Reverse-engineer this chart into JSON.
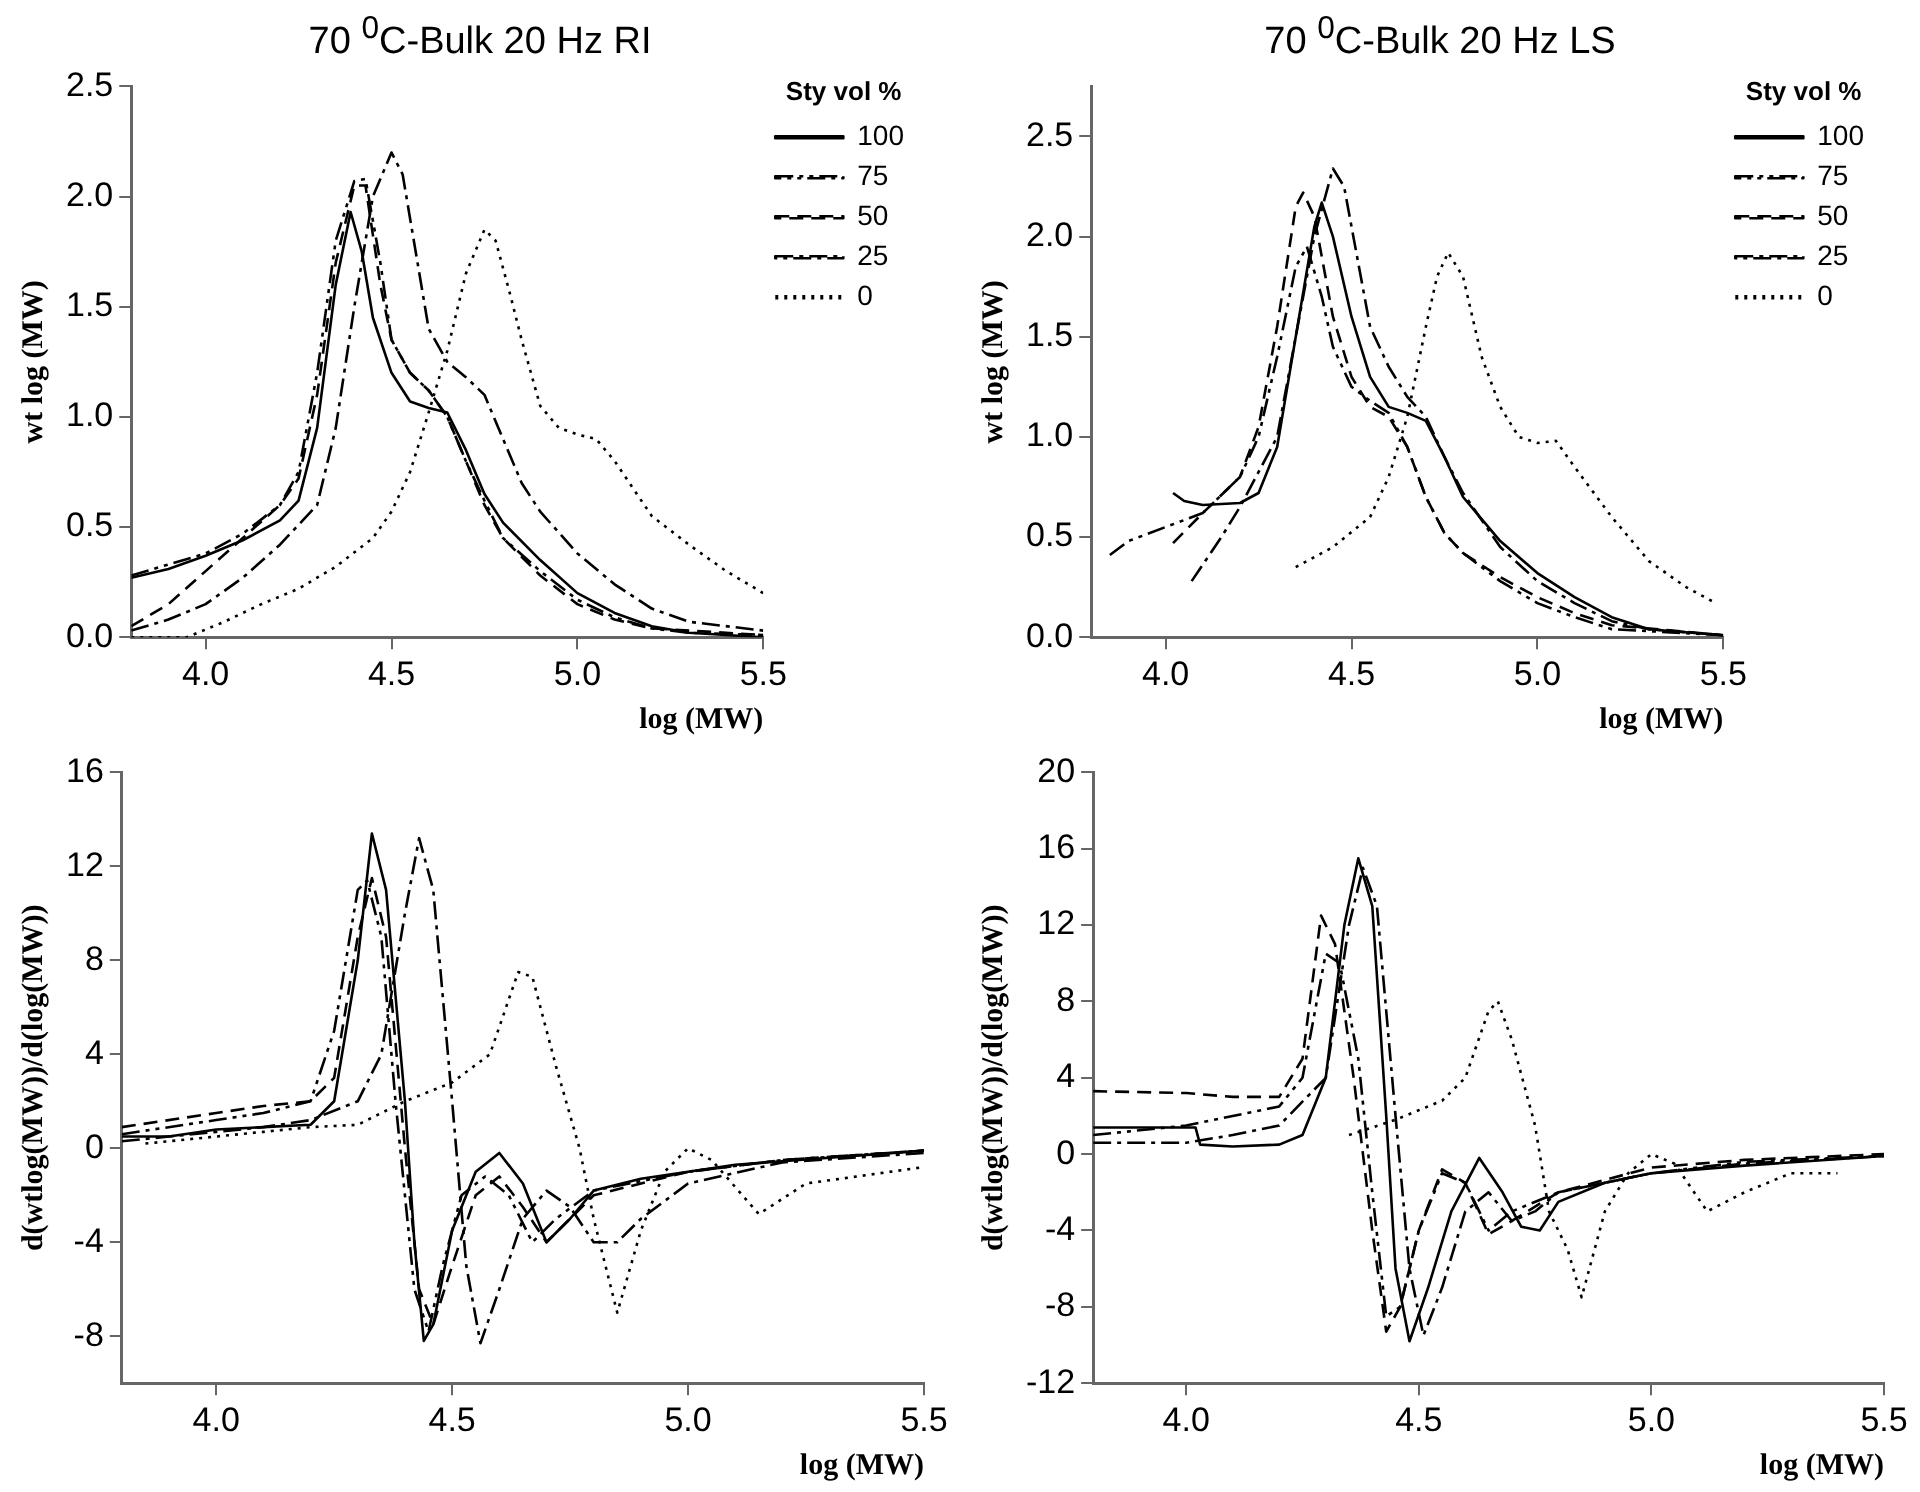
{
  "chart_data": [
    {
      "type": "line",
      "title": "70 $^{0}$C-Bulk 20 Hz RI",
      "xlabel": "log (MW)",
      "ylabel": "wt log (MW)",
      "xlim": [
        3.8,
        5.5
      ],
      "xticks": [
        {
          "value": 4,
          "label": "4.0"
        },
        {
          "value": 4.5,
          "label": "4.5"
        },
        {
          "value": 5,
          "label": "5.0"
        },
        {
          "value": 5.5,
          "label": "5.5"
        }
      ],
      "ylim": [
        0,
        2.5
      ],
      "yticks": [
        {
          "value": 0,
          "label": "0.0"
        },
        {
          "value": 0.5,
          "label": "0.5"
        },
        {
          "value": 1,
          "label": "1.0"
        },
        {
          "value": 1.5,
          "label": "1.5"
        },
        {
          "value": 2,
          "label": "2.0"
        },
        {
          "value": 2.5,
          "label": "2.5"
        }
      ],
      "legend": "top right",
      "legend_title": "Sty vol %",
      "grid": false,
      "series": [
        {
          "name": "100",
          "color": "#000000",
          "line_style": "solid",
          "x": [
            3.8,
            3.9,
            4.0,
            4.1,
            4.2,
            4.25,
            4.3,
            4.35,
            4.39,
            4.42,
            4.45,
            4.5,
            4.55,
            4.6,
            4.65,
            4.7,
            4.75,
            4.8,
            4.9,
            5.0,
            5.1,
            5.2,
            5.3,
            5.5
          ],
          "values": [
            0.27,
            0.31,
            0.37,
            0.44,
            0.53,
            0.62,
            0.95,
            1.6,
            1.93,
            1.75,
            1.45,
            1.2,
            1.07,
            1.04,
            1.02,
            0.85,
            0.65,
            0.52,
            0.35,
            0.2,
            0.11,
            0.05,
            0.02,
            0.0
          ]
        },
        {
          "name": "75",
          "color": "#000000",
          "line_style": "dashdotdot",
          "x": [
            3.8,
            3.9,
            4.0,
            4.1,
            4.2,
            4.25,
            4.3,
            4.35,
            4.4,
            4.43,
            4.47,
            4.5,
            4.55,
            4.6,
            4.65,
            4.7,
            4.75,
            4.8,
            4.9,
            5.0,
            5.1,
            5.2,
            5.3,
            5.5
          ],
          "values": [
            0.28,
            0.33,
            0.38,
            0.47,
            0.6,
            0.75,
            1.2,
            1.8,
            2.07,
            2.08,
            1.7,
            1.35,
            1.2,
            1.12,
            1.0,
            0.8,
            0.62,
            0.45,
            0.3,
            0.17,
            0.09,
            0.04,
            0.02,
            0.01
          ]
        },
        {
          "name": "50",
          "color": "#000000",
          "line_style": "dashed",
          "x": [
            3.8,
            3.9,
            4.0,
            4.1,
            4.2,
            4.25,
            4.3,
            4.35,
            4.4,
            4.43,
            4.47,
            4.5,
            4.55,
            4.6,
            4.65,
            4.7,
            4.75,
            4.8,
            4.9,
            5.0,
            5.1,
            5.2,
            5.5
          ],
          "values": [
            0.05,
            0.15,
            0.3,
            0.45,
            0.6,
            0.72,
            1.1,
            1.7,
            2.05,
            2.05,
            1.6,
            1.35,
            1.2,
            1.12,
            1.0,
            0.8,
            0.6,
            0.45,
            0.28,
            0.15,
            0.08,
            0.04,
            0.01
          ]
        },
        {
          "name": "25",
          "color": "#000000",
          "line_style": "dashdot",
          "x": [
            3.8,
            3.9,
            4.0,
            4.1,
            4.2,
            4.3,
            4.35,
            4.4,
            4.45,
            4.5,
            4.53,
            4.57,
            4.6,
            4.65,
            4.7,
            4.75,
            4.8,
            4.85,
            4.9,
            5.0,
            5.1,
            5.2,
            5.3,
            5.5
          ],
          "values": [
            0.03,
            0.08,
            0.15,
            0.27,
            0.42,
            0.6,
            0.95,
            1.5,
            2.0,
            2.2,
            2.1,
            1.7,
            1.4,
            1.25,
            1.18,
            1.1,
            0.9,
            0.7,
            0.57,
            0.38,
            0.24,
            0.13,
            0.07,
            0.03
          ]
        },
        {
          "name": "0",
          "color": "#000000",
          "line_style": "dotted",
          "x": [
            3.8,
            3.95,
            4.05,
            4.15,
            4.25,
            4.35,
            4.45,
            4.5,
            4.55,
            4.6,
            4.65,
            4.7,
            4.75,
            4.78,
            4.82,
            4.85,
            4.9,
            4.95,
            5.0,
            5.05,
            5.1,
            5.2,
            5.3,
            5.4,
            5.5
          ],
          "values": [
            0.0,
            0.0,
            0.07,
            0.15,
            0.22,
            0.32,
            0.45,
            0.57,
            0.75,
            1.02,
            1.3,
            1.65,
            1.85,
            1.8,
            1.55,
            1.35,
            1.05,
            0.95,
            0.92,
            0.9,
            0.8,
            0.55,
            0.42,
            0.3,
            0.2
          ]
        }
      ]
    },
    {
      "type": "line",
      "title": "70 $^{0}$C-Bulk 20 Hz LS",
      "xlabel": "log (MW)",
      "ylabel": "wt log (MW)",
      "xlim": [
        3.8,
        5.5
      ],
      "xticks": [
        {
          "value": 4,
          "label": "4.0"
        },
        {
          "value": 4.5,
          "label": "4.5"
        },
        {
          "value": 5,
          "label": "5.0"
        },
        {
          "value": 5.5,
          "label": "5.5"
        }
      ],
      "ylim": [
        0,
        2.75
      ],
      "yticks": [
        {
          "value": 0,
          "label": "0.0"
        },
        {
          "value": 0.5,
          "label": "0.5"
        },
        {
          "value": 1,
          "label": "1.0"
        },
        {
          "value": 1.5,
          "label": "1.5"
        },
        {
          "value": 2,
          "label": "2.0"
        },
        {
          "value": 2.5,
          "label": "2.5"
        }
      ],
      "legend": "top right",
      "legend_title": "Sty vol %",
      "grid": false,
      "series": [
        {
          "name": "100",
          "color": "#000000",
          "line_style": "solid",
          "x": [
            4.02,
            4.05,
            4.1,
            4.2,
            4.25,
            4.3,
            4.35,
            4.4,
            4.42,
            4.45,
            4.5,
            4.55,
            4.6,
            4.65,
            4.7,
            4.75,
            4.8,
            4.9,
            5.0,
            5.1,
            5.2,
            5.3,
            5.5
          ],
          "values": [
            0.72,
            0.68,
            0.66,
            0.67,
            0.72,
            0.95,
            1.5,
            2.05,
            2.17,
            2.0,
            1.6,
            1.3,
            1.15,
            1.12,
            1.08,
            0.9,
            0.7,
            0.48,
            0.32,
            0.2,
            0.1,
            0.04,
            0.01
          ]
        },
        {
          "name": "75",
          "color": "#000000",
          "line_style": "dashdotdot",
          "x": [
            3.85,
            3.9,
            4.0,
            4.1,
            4.2,
            4.25,
            4.3,
            4.35,
            4.38,
            4.42,
            4.45,
            4.5,
            4.55,
            4.6,
            4.65,
            4.7,
            4.75,
            4.8,
            4.9,
            5.0,
            5.1,
            5.2,
            5.5
          ],
          "values": [
            0.41,
            0.48,
            0.55,
            0.62,
            0.8,
            1.0,
            1.4,
            1.85,
            1.95,
            1.7,
            1.45,
            1.25,
            1.18,
            1.12,
            0.95,
            0.7,
            0.52,
            0.42,
            0.28,
            0.17,
            0.1,
            0.04,
            0.01
          ]
        },
        {
          "name": "50",
          "color": "#000000",
          "line_style": "dashed",
          "x": [
            4.02,
            4.1,
            4.2,
            4.25,
            4.3,
            4.35,
            4.37,
            4.4,
            4.45,
            4.5,
            4.55,
            4.6,
            4.65,
            4.7,
            4.75,
            4.8,
            4.9,
            5.0,
            5.1,
            5.2,
            5.5
          ],
          "values": [
            0.47,
            0.62,
            0.8,
            1.05,
            1.55,
            2.15,
            2.22,
            2.1,
            1.6,
            1.3,
            1.15,
            1.1,
            0.95,
            0.7,
            0.52,
            0.42,
            0.3,
            0.2,
            0.12,
            0.06,
            0.01
          ]
        },
        {
          "name": "25",
          "color": "#000000",
          "line_style": "dashdot",
          "x": [
            4.07,
            4.15,
            4.2,
            4.3,
            4.35,
            4.4,
            4.45,
            4.48,
            4.52,
            4.55,
            4.6,
            4.65,
            4.7,
            4.75,
            4.8,
            4.9,
            5.0,
            5.1,
            5.2,
            5.3,
            5.5
          ],
          "values": [
            0.28,
            0.5,
            0.65,
            1.0,
            1.5,
            2.0,
            2.34,
            2.25,
            1.85,
            1.55,
            1.35,
            1.2,
            1.1,
            0.9,
            0.72,
            0.45,
            0.28,
            0.17,
            0.08,
            0.04,
            0.01
          ]
        },
        {
          "name": "0",
          "color": "#000000",
          "line_style": "dotted",
          "x": [
            4.35,
            4.45,
            4.55,
            4.6,
            4.65,
            4.7,
            4.73,
            4.76,
            4.8,
            4.85,
            4.9,
            4.95,
            5.0,
            5.05,
            5.1,
            5.2,
            5.3,
            5.4,
            5.47
          ],
          "values": [
            0.35,
            0.45,
            0.6,
            0.8,
            1.1,
            1.55,
            1.8,
            1.92,
            1.8,
            1.4,
            1.15,
            1.0,
            0.97,
            0.98,
            0.85,
            0.6,
            0.38,
            0.25,
            0.18
          ]
        }
      ]
    },
    {
      "type": "line",
      "xlabel": "log (MW)",
      "ylabel": "d(wtlog(MW))/d(log(MW))",
      "xlim": [
        3.8,
        5.5
      ],
      "xticks": [
        {
          "value": 4,
          "label": "4.0"
        },
        {
          "value": 4.5,
          "label": "4.5"
        },
        {
          "value": 5,
          "label": "5.0"
        },
        {
          "value": 5.5,
          "label": "5.5"
        }
      ],
      "ylim": [
        -10,
        16
      ],
      "yticks": [
        -8,
        -4,
        0,
        4,
        8,
        12,
        16
      ],
      "grid": false,
      "series": [
        {
          "color": "#000000",
          "line_style": "solid",
          "x": [
            3.8,
            3.9,
            4.0,
            4.1,
            4.2,
            4.25,
            4.3,
            4.33,
            4.36,
            4.4,
            4.42,
            4.44,
            4.46,
            4.5,
            4.55,
            4.6,
            4.65,
            4.7,
            4.75,
            4.8,
            4.9,
            5.0,
            5.1,
            5.3,
            5.5
          ],
          "values": [
            0.5,
            0.5,
            0.8,
            0.9,
            1.0,
            2,
            8,
            13.4,
            11,
            2,
            -4,
            -8.2,
            -7.5,
            -3.5,
            -1,
            -0.2,
            -1.5,
            -4,
            -3,
            -1.8,
            -1.3,
            -1,
            -0.7,
            -0.4,
            -0.1
          ]
        },
        {
          "color": "#000000",
          "line_style": "dashdotdot",
          "x": [
            3.8,
            4.0,
            4.1,
            4.2,
            4.25,
            4.3,
            4.32,
            4.35,
            4.38,
            4.42,
            4.45,
            4.48,
            4.52,
            4.57,
            4.62,
            4.67,
            4.72,
            4.8,
            5.0,
            5.2,
            5.5
          ],
          "values": [
            0.6,
            1.2,
            1.5,
            2,
            5,
            11,
            11.4,
            9,
            2,
            -6,
            -7.8,
            -5,
            -2,
            -1.2,
            -2,
            -4,
            -3,
            -1.8,
            -1,
            -0.5,
            -0.1
          ]
        },
        {
          "color": "#000000",
          "line_style": "dashed",
          "x": [
            3.8,
            4.0,
            4.1,
            4.2,
            4.25,
            4.3,
            4.33,
            4.36,
            4.4,
            4.43,
            4.46,
            4.5,
            4.55,
            4.6,
            4.65,
            4.7,
            4.75,
            4.8,
            5.0,
            5.2,
            5.5
          ],
          "values": [
            0.9,
            1.5,
            1.8,
            2.0,
            3,
            9,
            11.5,
            9,
            0,
            -6,
            -7.5,
            -5,
            -2,
            -1.2,
            -2.5,
            -4,
            -3,
            -2,
            -1,
            -0.5,
            -0.1
          ]
        },
        {
          "color": "#000000",
          "line_style": "dashdot",
          "x": [
            3.8,
            4.0,
            4.1,
            4.2,
            4.3,
            4.35,
            4.4,
            4.43,
            4.46,
            4.5,
            4.53,
            4.56,
            4.6,
            4.65,
            4.7,
            4.75,
            4.8,
            4.85,
            4.9,
            5.0,
            5.2,
            5.5
          ],
          "values": [
            0.3,
            0.7,
            0.9,
            1.2,
            2,
            4,
            10,
            13.2,
            11,
            2,
            -5,
            -8.3,
            -6,
            -3,
            -1.8,
            -2.5,
            -4,
            -4,
            -3,
            -1.5,
            -0.6,
            -0.2
          ]
        },
        {
          "color": "#000000",
          "line_style": "dotted",
          "x": [
            3.85,
            4.0,
            4.1,
            4.2,
            4.3,
            4.4,
            4.5,
            4.58,
            4.64,
            4.67,
            4.72,
            4.77,
            4.8,
            4.85,
            4.9,
            4.95,
            5.0,
            5.05,
            5.15,
            5.25,
            5.5
          ],
          "values": [
            0.2,
            0.5,
            0.7,
            0.9,
            1,
            2,
            2.8,
            4,
            7.5,
            7.3,
            3.5,
            0,
            -3,
            -7,
            -3.5,
            -1,
            0,
            -0.5,
            -2.8,
            -1.5,
            -0.8
          ]
        }
      ]
    },
    {
      "type": "line",
      "xlabel": "log (MW)",
      "ylabel": "d(wtlog(MW))/d(log(MW))",
      "xlim": [
        3.8,
        5.5
      ],
      "xticks": [
        {
          "value": 4,
          "label": "4.0"
        },
        {
          "value": 4.5,
          "label": "4.5"
        },
        {
          "value": 5,
          "label": "5.0"
        },
        {
          "value": 5.5,
          "label": "5.5"
        }
      ],
      "ylim": [
        -12,
        20
      ],
      "yticks": [
        -12,
        -8,
        -4,
        0,
        4,
        8,
        12,
        16,
        20
      ],
      "grid": false,
      "series": [
        {
          "color": "#000000",
          "line_style": "solid",
          "x": [
            3.8,
            4.02,
            4.03,
            4.1,
            4.2,
            4.25,
            4.3,
            4.34,
            4.37,
            4.4,
            4.43,
            4.45,
            4.48,
            4.52,
            4.57,
            4.63,
            4.68,
            4.72,
            4.76,
            4.8,
            4.9,
            5.0,
            5.2,
            5.5
          ],
          "values": [
            1.4,
            1.4,
            0.5,
            0.4,
            0.5,
            1,
            4,
            12,
            15.5,
            13,
            2,
            -6,
            -9.8,
            -7,
            -3,
            -0.2,
            -2,
            -3.8,
            -4,
            -2.5,
            -1.5,
            -1,
            -0.6,
            -0.1
          ]
        },
        {
          "color": "#000000",
          "line_style": "dashdotdot",
          "x": [
            3.8,
            4.0,
            4.1,
            4.2,
            4.25,
            4.3,
            4.33,
            4.37,
            4.4,
            4.43,
            4.46,
            4.5,
            4.55,
            4.6,
            4.65,
            4.7,
            4.8,
            5.0,
            5.2,
            5.5
          ],
          "values": [
            1,
            1.5,
            2,
            2.5,
            4,
            10.5,
            10,
            5,
            -2,
            -8.5,
            -8,
            -4,
            -1,
            -1.5,
            -4,
            -3,
            -2,
            -1,
            -0.4,
            -0.1
          ]
        },
        {
          "color": "#000000",
          "line_style": "dashed",
          "x": [
            3.8,
            4.0,
            4.1,
            4.2,
            4.25,
            4.29,
            4.32,
            4.36,
            4.4,
            4.43,
            4.46,
            4.5,
            4.55,
            4.6,
            4.65,
            4.7,
            4.8,
            5.0,
            5.2,
            5.5
          ],
          "values": [
            3.3,
            3.2,
            3,
            3,
            5,
            12.5,
            11,
            4,
            -4,
            -9.3,
            -8,
            -4,
            -0.8,
            -1.5,
            -4.2,
            -3.5,
            -2,
            -0.7,
            -0.3,
            0
          ]
        },
        {
          "color": "#000000",
          "line_style": "dashdot",
          "x": [
            3.8,
            4.0,
            4.1,
            4.2,
            4.3,
            4.35,
            4.38,
            4.41,
            4.45,
            4.48,
            4.51,
            4.55,
            4.6,
            4.65,
            4.7,
            4.75,
            4.8,
            5.0,
            5.2,
            5.5
          ],
          "values": [
            0.6,
            0.6,
            1,
            1.5,
            4,
            12,
            15,
            13,
            2,
            -6,
            -9.5,
            -7,
            -3,
            -2,
            -3.5,
            -3,
            -2,
            -1,
            -0.5,
            -0.1
          ]
        },
        {
          "color": "#000000",
          "line_style": "dotted",
          "x": [
            4.35,
            4.45,
            4.55,
            4.6,
            4.65,
            4.67,
            4.7,
            4.75,
            4.78,
            4.82,
            4.85,
            4.9,
            4.95,
            5.0,
            5.05,
            5.12,
            5.2,
            5.3,
            5.4
          ],
          "values": [
            1,
            1.8,
            2.8,
            4,
            7.5,
            8,
            6,
            1.5,
            -3,
            -5,
            -7.5,
            -3,
            -1,
            0,
            -0.5,
            -3,
            -2,
            -1,
            -1
          ]
        }
      ]
    }
  ]
}
